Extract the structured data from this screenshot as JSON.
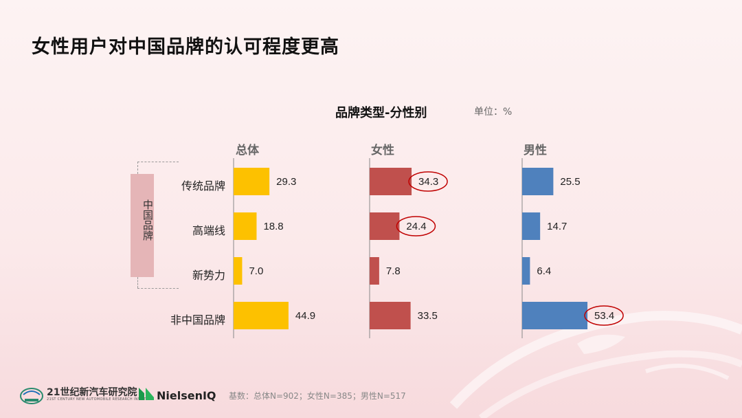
{
  "page_title": "女性用户对中国品牌的认可程度更高",
  "chart_title": "品牌类型-分性别",
  "unit": "单位：%",
  "group_label": "中国品牌",
  "footer": "基数：总体N=902；女性N=385；男性N=517",
  "logos": {
    "institute_name": "21世纪新汽车研究院",
    "institute_sub": "21ST CENTURY NEW AUTOMOBILE RESEARCH INSTITUTE",
    "nielsen": "NielsenIQ"
  },
  "colors": {
    "overall": "#FDC100",
    "female": "#C0504D",
    "male": "#4F81BD",
    "highlight": "#C00000"
  },
  "chart_data": {
    "type": "bar",
    "orientation": "horizontal",
    "title": "品牌类型-分性别",
    "categories": [
      "传统品牌",
      "高端线",
      "新势力",
      "非中国品牌"
    ],
    "series": [
      {
        "name": "总体",
        "values": [
          29.3,
          18.8,
          7.0,
          44.9
        ],
        "labels": [
          "29.3",
          "18.8",
          "7.0",
          "44.9"
        ],
        "highlighted": []
      },
      {
        "name": "女性",
        "values": [
          34.3,
          24.4,
          7.8,
          33.5
        ],
        "labels": [
          "34.3",
          "24.4",
          "7.8",
          "33.5"
        ],
        "highlighted": [
          0,
          1
        ]
      },
      {
        "name": "男性",
        "values": [
          25.5,
          14.7,
          6.4,
          53.4
        ],
        "labels": [
          "25.5",
          "14.7",
          "6.4",
          "53.4"
        ],
        "highlighted": [
          3
        ]
      }
    ]
  }
}
